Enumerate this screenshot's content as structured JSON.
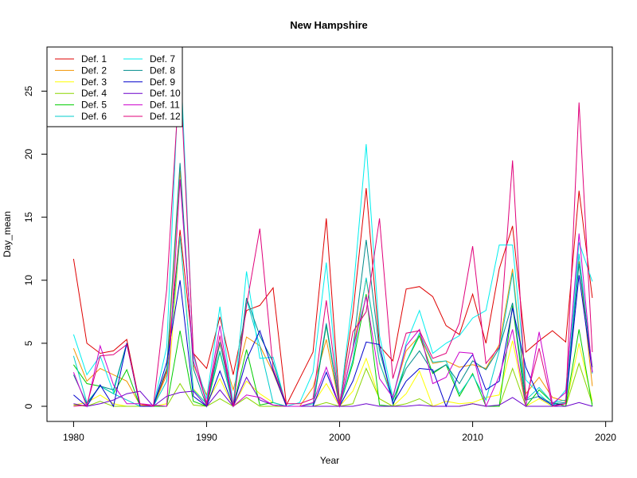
{
  "chart_data": {
    "type": "line",
    "title": "New Hampshire",
    "xlabel": "Year",
    "ylabel": "Day_mean",
    "xlim": [
      1978,
      2020.5
    ],
    "ylim": [
      -1.2,
      28.5
    ],
    "x_ticks": [
      1980,
      1990,
      2000,
      2010,
      2020
    ],
    "y_ticks": [
      0,
      5,
      10,
      15,
      20,
      25
    ],
    "grid": false,
    "legend_position": "top-left",
    "x": [
      1980,
      1981,
      1982,
      1983,
      1984,
      1985,
      1986,
      1987,
      1988,
      1989,
      1990,
      1991,
      1992,
      1993,
      1994,
      1995,
      1996,
      1997,
      1998,
      1999,
      2000,
      2001,
      2002,
      2003,
      2004,
      2005,
      2006,
      2007,
      2008,
      2009,
      2010,
      2011,
      2012,
      2013,
      2014,
      2015,
      2016,
      2017,
      2018,
      2019
    ],
    "series": [
      {
        "name": "Def. 1",
        "color": "#DF0000",
        "values": [
          11.7,
          5.0,
          4.2,
          4.4,
          5.3,
          0.1,
          0.0,
          2.8,
          14.0,
          4.2,
          3.0,
          7.1,
          2.5,
          7.6,
          8.0,
          9.4,
          0.1,
          2.2,
          4.3,
          14.9,
          0.2,
          7.4,
          17.3,
          4.8,
          3.6,
          9.3,
          9.5,
          8.7,
          6.4,
          5.7,
          8.9,
          5.0,
          10.9,
          14.3,
          4.3,
          5.2,
          6.0,
          5.1,
          17.1,
          8.6
        ]
      },
      {
        "name": "Def. 2",
        "color": "#F29400",
        "values": [
          4.6,
          2.0,
          3.0,
          2.5,
          2.0,
          0.1,
          0.0,
          2.5,
          18.7,
          3.3,
          0.9,
          4.9,
          1.3,
          5.5,
          4.8,
          2.7,
          0.0,
          0.0,
          1.5,
          5.3,
          0.0,
          4.5,
          10.1,
          3.4,
          0.8,
          4.4,
          5.6,
          3.4,
          3.6,
          3.1,
          3.3,
          3.0,
          4.9,
          10.9,
          1.0,
          2.3,
          0.7,
          0.4,
          11.5,
          1.6
        ]
      },
      {
        "name": "Def. 3",
        "color": "#FFFF00",
        "values": [
          0.1,
          0.3,
          0.9,
          0.2,
          0.0,
          0.0,
          0.0,
          0.2,
          13.5,
          1.4,
          0.2,
          2.2,
          0.0,
          2.0,
          1.0,
          0.3,
          0.0,
          0.0,
          0.2,
          1.8,
          0.0,
          1.2,
          3.8,
          0.6,
          0.0,
          1.0,
          2.8,
          0.0,
          0.4,
          0.2,
          0.3,
          0.7,
          0.9,
          5.2,
          0.0,
          0.6,
          0.0,
          0.0,
          5.0,
          0.4
        ]
      },
      {
        "name": "Def. 4",
        "color": "#8BD600",
        "values": [
          0.1,
          0.0,
          0.4,
          0.0,
          0.0,
          0.0,
          0.0,
          0.0,
          1.8,
          0.1,
          0.0,
          0.6,
          0.0,
          0.7,
          0.0,
          0.0,
          0.0,
          0.0,
          0.0,
          0.3,
          0.0,
          0.2,
          3.0,
          0.6,
          0.0,
          0.2,
          0.6,
          0.0,
          0.0,
          0.0,
          0.2,
          0.0,
          0.0,
          3.0,
          0.0,
          0.0,
          0.0,
          0.0,
          3.4,
          0.2
        ]
      },
      {
        "name": "Def. 5",
        "color": "#00CD00",
        "values": [
          3.3,
          1.8,
          1.6,
          1.0,
          2.9,
          0.0,
          0.0,
          0.0,
          6.0,
          0.4,
          0.0,
          4.3,
          0.0,
          4.5,
          0.1,
          0.3,
          0.0,
          0.0,
          0.0,
          6.4,
          0.0,
          3.4,
          8.9,
          0.1,
          0.0,
          3.5,
          5.6,
          2.6,
          3.3,
          0.8,
          2.6,
          0.0,
          0.0,
          8.0,
          0.0,
          1.3,
          0.3,
          0.0,
          6.1,
          0.0
        ]
      },
      {
        "name": "Def. 6",
        "color": "#00CCCC",
        "values": [
          4.0,
          0.3,
          1.6,
          1.0,
          0.5,
          0.0,
          0.0,
          2.0,
          13.5,
          1.3,
          0.2,
          4.4,
          0.0,
          8.5,
          4.8,
          0.3,
          0.0,
          0.0,
          0.2,
          6.6,
          0.0,
          3.7,
          10.2,
          3.5,
          0.4,
          3.5,
          5.8,
          3.5,
          3.6,
          1.0,
          2.5,
          0.5,
          4.4,
          10.6,
          0.5,
          1.5,
          0.3,
          0.5,
          12.1,
          2.6
        ]
      },
      {
        "name": "Def. 7",
        "color": "#00EEEE",
        "values": [
          5.7,
          2.5,
          4.0,
          1.1,
          5.0,
          0.0,
          0.0,
          4.7,
          28.4,
          4.0,
          0.6,
          7.9,
          0.1,
          10.7,
          3.8,
          3.9,
          0.0,
          0.3,
          2.7,
          11.4,
          0.0,
          8.8,
          20.8,
          5.6,
          0.7,
          5.0,
          7.6,
          4.2,
          5.0,
          5.6,
          7.0,
          7.6,
          12.8,
          12.8,
          2.1,
          1.0,
          0.0,
          1.3,
          13.0,
          9.9
        ]
      },
      {
        "name": "Def. 8",
        "color": "#008B8B",
        "values": [
          2.5,
          0.2,
          1.6,
          1.3,
          5.0,
          0.0,
          0.0,
          3.0,
          19.3,
          3.0,
          0.0,
          5.1,
          0.0,
          8.6,
          5.6,
          3.5,
          0.0,
          0.0,
          0.0,
          6.5,
          0.0,
          4.6,
          13.2,
          4.4,
          0.5,
          3.0,
          4.4,
          2.7,
          3.3,
          1.8,
          3.6,
          2.9,
          4.6,
          8.2,
          0.5,
          0.8,
          0.2,
          0.3,
          11.3,
          3.1
        ]
      },
      {
        "name": "Def. 9",
        "color": "#0000CC",
        "values": [
          0.9,
          0.0,
          1.7,
          0.0,
          5.0,
          0.0,
          0.0,
          3.5,
          10.0,
          0.8,
          0.0,
          2.8,
          0.0,
          3.7,
          6.0,
          2.8,
          0.0,
          0.0,
          0.0,
          2.7,
          0.0,
          2.0,
          5.1,
          4.9,
          0.2,
          2.0,
          3.0,
          2.9,
          0.0,
          2.7,
          4.1,
          1.3,
          2.0,
          7.8,
          3.1,
          0.7,
          0.1,
          0.2,
          10.4,
          2.7
        ]
      },
      {
        "name": "Def. 10",
        "color": "#6A00CC",
        "values": [
          0.2,
          0.0,
          0.2,
          0.5,
          1.0,
          1.2,
          0.0,
          0.8,
          1.1,
          1.2,
          0.0,
          1.3,
          0.0,
          2.3,
          0.5,
          0.1,
          0.0,
          0.0,
          0.0,
          0.0,
          0.0,
          0.0,
          0.2,
          0.0,
          0.0,
          0.0,
          0.1,
          0.0,
          0.0,
          0.0,
          0.2,
          0.0,
          0.1,
          0.7,
          0.0,
          0.0,
          0.0,
          0.0,
          0.3,
          0.0
        ]
      },
      {
        "name": "Def. 11",
        "color": "#CC00CC",
        "values": [
          2.7,
          0.0,
          4.8,
          1.7,
          0.2,
          0.2,
          0.1,
          0.0,
          18.0,
          3.6,
          0.3,
          6.4,
          0.0,
          0.9,
          0.7,
          0.1,
          0.0,
          0.0,
          0.3,
          3.1,
          0.0,
          4.6,
          8.7,
          2.2,
          0.7,
          4.8,
          6.1,
          1.8,
          2.3,
          4.3,
          4.2,
          0.0,
          2.4,
          6.1,
          0.0,
          5.9,
          0.2,
          1.1,
          13.7,
          2.7
        ]
      },
      {
        "name": "Def. 12",
        "color": "#E0007A",
        "values": [
          0.0,
          0.1,
          4.0,
          4.1,
          4.9,
          0.2,
          0.0,
          9.3,
          26.8,
          4.3,
          0.1,
          5.6,
          0.0,
          8.0,
          14.1,
          3.0,
          0.2,
          0.2,
          0.6,
          8.4,
          0.1,
          5.9,
          7.5,
          14.9,
          2.2,
          5.8,
          6.0,
          3.8,
          4.2,
          6.6,
          12.7,
          3.4,
          4.7,
          19.5,
          0.5,
          4.6,
          0.0,
          0.2,
          24.1,
          4.3
        ]
      }
    ]
  }
}
